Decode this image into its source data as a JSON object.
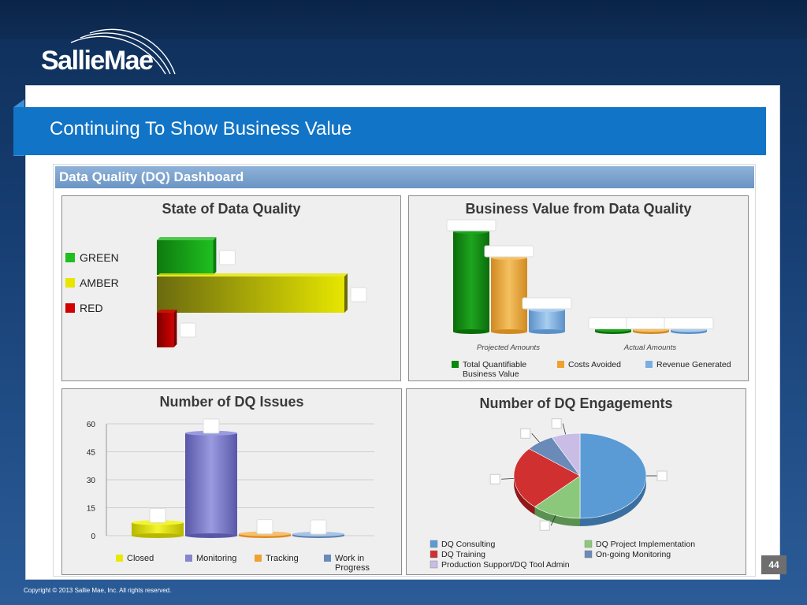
{
  "slide": {
    "logo_text": "SallieMae",
    "title": "Continuing To Show Business Value",
    "dashboard_title": "Data Quality (DQ) Dashboard",
    "page_number": "44",
    "copyright": "Copyright  © 2013 Sallie Mae, Inc. All rights reserved."
  },
  "colors": {
    "green": "#1fbf1f",
    "amber": "#e6e600",
    "red": "#d40000",
    "dark_green": "#0a8a0a",
    "orange": "#f0a030",
    "light_blue": "#7aaee0",
    "purple": "#8585d0",
    "steel_blue": "#6a8ab8",
    "pie_blue": "#5b9bd5",
    "pie_green": "#8cc87c",
    "pie_red": "#d03030",
    "pie_lavender": "#c9bde6"
  },
  "chart_data": [
    {
      "type": "bar",
      "orientation": "horizontal",
      "title": "State of Data Quality",
      "categories": [
        "GREEN",
        "AMBER",
        "RED"
      ],
      "values": [
        0.3,
        1.0,
        0.09
      ],
      "value_note": "relative bar lengths (no axis printed)",
      "legend": "left"
    },
    {
      "type": "bar",
      "title": "Business Value from Data Quality",
      "categories": [
        "Projected Amounts",
        "Actual Amounts"
      ],
      "series": [
        {
          "name": "Total Quantifiable Business Value",
          "values": [
            1.0,
            0.02
          ]
        },
        {
          "name": "Costs Avoided",
          "values": [
            0.74,
            0.02
          ]
        },
        {
          "name": "Revenue Generated",
          "values": [
            0.22,
            0.02
          ]
        }
      ],
      "value_note": "relative bar heights (no axis printed)",
      "legend": "bottom"
    },
    {
      "type": "bar",
      "title": "Number of DQ Issues",
      "categories": [
        "Closed",
        "Monitoring",
        "Tracking",
        "Work in Progress"
      ],
      "values": [
        7,
        55,
        1,
        0.5
      ],
      "ylim": [
        0,
        60
      ],
      "yticks": [
        0,
        15,
        30,
        45,
        60
      ],
      "legend": "bottom"
    },
    {
      "type": "pie",
      "title": "Number of DQ Engagements",
      "labels": [
        "DQ Consulting",
        "DQ Project Implementation",
        "DQ Training",
        "On-going Monitoring",
        "Production Support/DQ Tool Admin"
      ],
      "values": [
        50,
        12,
        24,
        7,
        7
      ],
      "legend": "bottom"
    }
  ]
}
